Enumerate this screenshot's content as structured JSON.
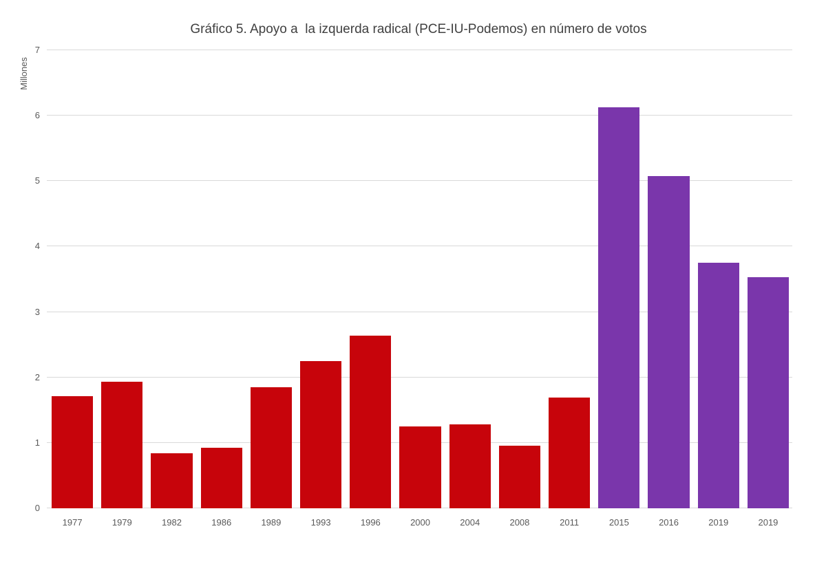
{
  "chart_data": {
    "type": "bar",
    "title": "Gráfico 5. Apoyo a  la izquerda radical (PCE-IU-Podemos) en número de votos",
    "ylabel": "Millones",
    "xlabel": "",
    "categories": [
      "1977",
      "1979",
      "1982",
      "1986",
      "1989",
      "1993",
      "1996",
      "2000",
      "2004",
      "2008",
      "2011",
      "2015",
      "2016",
      "2019",
      "2019"
    ],
    "values": [
      1.71,
      1.93,
      0.84,
      0.93,
      1.85,
      2.25,
      2.64,
      1.25,
      1.28,
      0.96,
      1.69,
      6.13,
      5.08,
      3.75,
      3.53
    ],
    "point_colors": [
      "#C7040B",
      "#C7040B",
      "#C7040B",
      "#C7040B",
      "#C7040B",
      "#C7040B",
      "#C7040B",
      "#C7040B",
      "#C7040B",
      "#C7040B",
      "#C7040B",
      "#7A36AB",
      "#7A36AB",
      "#7A36AB",
      "#7A36AB"
    ],
    "ylim": [
      0,
      7
    ],
    "yticks": [
      0,
      1,
      2,
      3,
      4,
      5,
      6,
      7
    ],
    "grid": "horizontal",
    "legend_position": "none"
  },
  "style": {
    "background": "#FFFFFF",
    "grid_color": "#D9D9D9",
    "axis_line_color": "#D9D9D9",
    "title_color": "#404040",
    "tick_label_color": "#595959",
    "red_series_color": "#C7040B",
    "purple_series_color": "#7A36AB"
  }
}
